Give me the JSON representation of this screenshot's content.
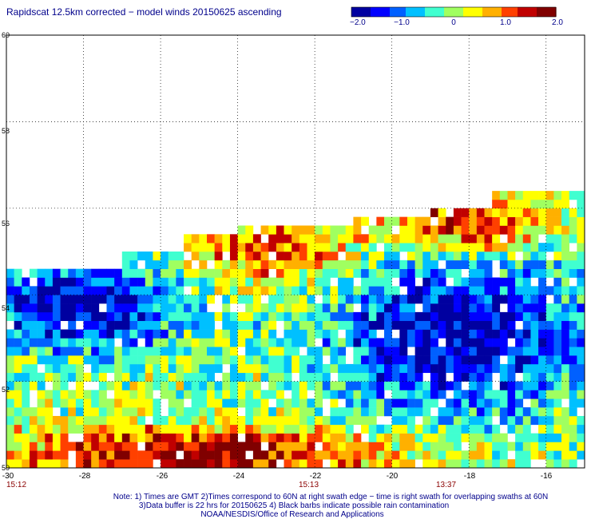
{
  "title": "Rapidscat 12.5km corrected − model winds 20150625 ascending",
  "colorbar": {
    "ticks": [
      "−2.0",
      "−1.0",
      "0",
      "1.0",
      "2.0"
    ],
    "range": [
      -2.0,
      2.0
    ],
    "colors": [
      "#0000a0",
      "#0000ff",
      "#0060ff",
      "#00c0ff",
      "#40ffd0",
      "#a0ff60",
      "#ffff00",
      "#ffb000",
      "#ff4000",
      "#c00000",
      "#800000"
    ]
  },
  "map": {
    "lon_range": [
      -30,
      -15
    ],
    "lat_range": [
      50,
      60
    ],
    "lon_ticks": [
      "-30",
      "-28",
      "-26",
      "-24",
      "-22",
      "-20",
      "-18",
      "-16"
    ],
    "lat_ticks": [
      "60",
      "58",
      "56",
      "54",
      "52",
      "50"
    ],
    "grid": "dotted",
    "times": [
      {
        "lon": -30,
        "label": "15:12"
      },
      {
        "lon": -22,
        "label": "15:13"
      },
      {
        "lon": -18.6,
        "label": "13:37"
      }
    ],
    "field": "wind speed difference (corrected − model)",
    "regions": [
      {
        "name": "north-east high anomaly",
        "lon": [
          -19.5,
          -16.5
        ],
        "lat": [
          55.3,
          56.0
        ],
        "value": 1.6
      },
      {
        "name": "central high anomaly",
        "lon": [
          -24.5,
          -21.5
        ],
        "lat": [
          54.5,
          55.5
        ],
        "value": 1.2
      },
      {
        "name": "south-west strip high anomaly",
        "lon": [
          -29.5,
          -20.5
        ],
        "lat": [
          50.0,
          50.6
        ],
        "value": 1.8
      },
      {
        "name": "eastern low anomaly",
        "lon": [
          -21,
          -15.5
        ],
        "lat": [
          51.5,
          54.5
        ],
        "value": -1.9
      },
      {
        "name": "western low anomaly",
        "lon": [
          -30,
          -26
        ],
        "lat": [
          53.0,
          54.5
        ],
        "value": -1.8
      }
    ]
  },
  "notes": [
    "Note: 1) Times are GMT 2)Times correspond to 60N at right swath edge − time is right swath for overlapping swaths at 60N",
    "3)Data buffer is 22 hrs for 20150625 4) Black barbs indicate possible rain contamination",
    "NOAA/NESDIS/Office of Research and Applications"
  ]
}
